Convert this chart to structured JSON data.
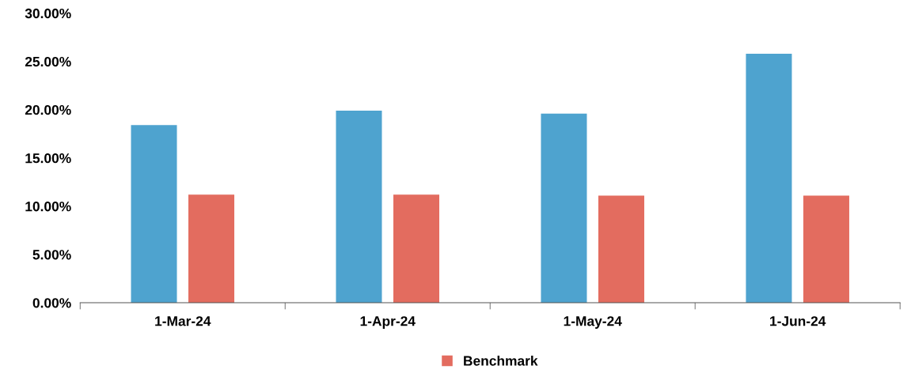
{
  "chart_data": {
    "type": "bar",
    "categories": [
      "1-Mar-24",
      "1-Apr-24",
      "1-May-24",
      "1-Jun-24"
    ],
    "series": [
      {
        "color": "#4ea3cf",
        "values": [
          18.4,
          19.9,
          19.6,
          25.8
        ]
      },
      {
        "name": "Benchmark",
        "color": "#e36c5f",
        "values": [
          11.2,
          11.2,
          11.1,
          11.1
        ]
      }
    ],
    "ylim": [
      0,
      30
    ],
    "yticks": [
      {
        "value": 0,
        "label": "0.00%"
      },
      {
        "value": 5,
        "label": "5.00%"
      },
      {
        "value": 10,
        "label": "10.00%"
      },
      {
        "value": 15,
        "label": "15.00%"
      },
      {
        "value": 20,
        "label": "20.00%"
      },
      {
        "value": 25,
        "label": "25.00%"
      },
      {
        "value": 30,
        "label": "30.00%"
      }
    ],
    "grid": false,
    "legend": "bottom"
  }
}
